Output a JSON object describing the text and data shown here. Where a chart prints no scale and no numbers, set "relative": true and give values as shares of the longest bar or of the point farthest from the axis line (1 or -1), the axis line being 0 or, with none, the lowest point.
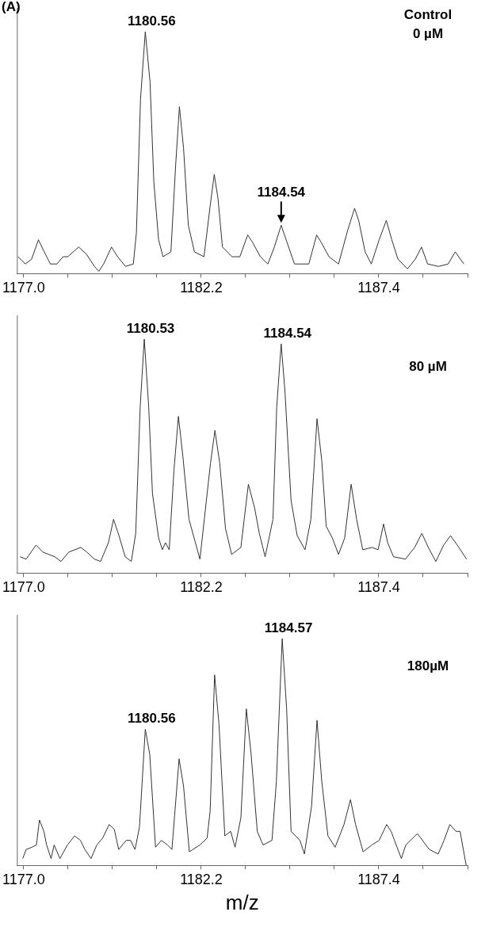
{
  "chart_data": [
    {
      "type": "line",
      "relative": true,
      "title": null,
      "annotations": [
        "(A)",
        "Control\n0 µM",
        {
          "text": "1180.56",
          "x": 1180.56,
          "y": 1
        },
        {
          "text": "1184.54",
          "x": 1184.54,
          "y": 0.2
        }
      ],
      "xlim": [
        1176.8,
        1190.0
      ],
      "xticks": [
        {
          "value": 1177.0,
          "label": "1177.0"
        },
        {
          "value": 1178.3,
          "label": null
        },
        {
          "value": 1179.6,
          "label": null
        },
        {
          "value": 1180.9,
          "label": null
        },
        {
          "value": 1182.2,
          "label": "1182.2"
        },
        {
          "value": 1183.5,
          "label": null
        },
        {
          "value": 1184.8,
          "label": null
        },
        {
          "value": 1186.1,
          "label": null
        },
        {
          "value": 1187.4,
          "label": "1187.4"
        },
        {
          "value": 1188.7,
          "label": null
        },
        {
          "value": 1190.0,
          "label": null
        }
      ],
      "grid": false,
      "legend": false,
      "marker": "none",
      "line_style": "solid",
      "series": [
        {
          "color": "#333333",
          "x": [
            1176.83,
            1177.05,
            1177.23,
            1177.43,
            1177.6,
            1177.78,
            1177.97,
            1178.15,
            1178.29,
            1178.61,
            1178.84,
            1179.07,
            1179.2,
            1179.34,
            1179.57,
            1179.75,
            1179.98,
            1180.21,
            1180.3,
            1180.42,
            1180.56,
            1180.7,
            1180.81,
            1180.95,
            1181.08,
            1181.31,
            1181.45,
            1181.56,
            1181.68,
            1181.82,
            1182.0,
            1182.28,
            1182.46,
            1182.58,
            1182.69,
            1182.82,
            1183.1,
            1183.33,
            1183.56,
            1183.7,
            1183.93,
            1184.15,
            1184.34,
            1184.54,
            1184.71,
            1184.93,
            1185.35,
            1185.58,
            1185.71,
            1185.94,
            1186.22,
            1186.49,
            1186.69,
            1186.81,
            1187.0,
            1187.18,
            1187.41,
            1187.62,
            1187.78,
            1187.96,
            1188.24,
            1188.47,
            1188.65,
            1188.83,
            1189.15,
            1189.43,
            1189.64,
            1189.89
          ],
          "values": [
            0.07,
            0.04,
            0.06,
            0.14,
            0.09,
            0.04,
            0.04,
            0.07,
            0.07,
            0.11,
            0.08,
            0.03,
            0.01,
            0.04,
            0.11,
            0.07,
            0.03,
            0.04,
            0.17,
            0.72,
            1,
            0.79,
            0.38,
            0.14,
            0.07,
            0.09,
            0.45,
            0.69,
            0.52,
            0.2,
            0.09,
            0.07,
            0.28,
            0.41,
            0.31,
            0.11,
            0.07,
            0.07,
            0.16,
            0.13,
            0.07,
            0.04,
            0.11,
            0.2,
            0.13,
            0.04,
            0.04,
            0.16,
            0.13,
            0.07,
            0.04,
            0.18,
            0.27,
            0.22,
            0.09,
            0.04,
            0.14,
            0.22,
            0.14,
            0.06,
            0.02,
            0.06,
            0.11,
            0.04,
            0.03,
            0.04,
            0.09,
            0.04
          ]
        }
      ]
    },
    {
      "type": "line",
      "relative": true,
      "annotations": [
        "80 µM",
        {
          "text": "1180.53",
          "x": 1180.53,
          "y": 1
        },
        {
          "text": "1184.54",
          "x": 1184.54,
          "y": 0.98
        }
      ],
      "xlim": [
        1176.8,
        1190.0
      ],
      "xticks": [
        {
          "value": 1177.0,
          "label": "1177.0"
        },
        {
          "value": 1178.3,
          "label": null
        },
        {
          "value": 1179.6,
          "label": null
        },
        {
          "value": 1180.9,
          "label": null
        },
        {
          "value": 1182.2,
          "label": "1182.2"
        },
        {
          "value": 1183.5,
          "label": null
        },
        {
          "value": 1184.8,
          "label": null
        },
        {
          "value": 1186.1,
          "label": null
        },
        {
          "value": 1187.4,
          "label": "1187.4"
        },
        {
          "value": 1188.7,
          "label": null
        },
        {
          "value": 1190.0,
          "label": null
        }
      ],
      "grid": false,
      "legend": false,
      "marker": "none",
      "line_style": "solid",
      "series": [
        {
          "color": "#333333",
          "x": [
            1176.89,
            1177.07,
            1177.36,
            1177.56,
            1177.91,
            1178.09,
            1178.32,
            1178.67,
            1178.85,
            1179.07,
            1179.25,
            1179.48,
            1179.63,
            1179.79,
            1179.97,
            1180.15,
            1180.28,
            1180.41,
            1180.53,
            1180.66,
            1180.77,
            1180.95,
            1181.06,
            1181.15,
            1181.26,
            1181.4,
            1181.53,
            1181.66,
            1181.84,
            1182.16,
            1182.47,
            1182.6,
            1182.74,
            1182.91,
            1183.09,
            1183.36,
            1183.58,
            1183.76,
            1183.9,
            1184.07,
            1184.3,
            1184.41,
            1184.54,
            1184.65,
            1184.83,
            1185.01,
            1185.24,
            1185.41,
            1185.59,
            1185.73,
            1185.86,
            1186.04,
            1186.22,
            1186.4,
            1186.59,
            1186.75,
            1186.93,
            1187.2,
            1187.38,
            1187.54,
            1187.66,
            1187.83,
            1188.18,
            1188.45,
            1188.66,
            1188.85,
            1189.07,
            1189.3,
            1189.5,
            1189.7,
            1189.97
          ],
          "values": [
            0.07,
            0.06,
            0.12,
            0.09,
            0.07,
            0.05,
            0.09,
            0.11,
            0.09,
            0.06,
            0.05,
            0.13,
            0.23,
            0.16,
            0.07,
            0.05,
            0.17,
            0.71,
            1,
            0.71,
            0.34,
            0.15,
            0.1,
            0.13,
            0.1,
            0.44,
            0.67,
            0.5,
            0.23,
            0.06,
            0.47,
            0.61,
            0.47,
            0.19,
            0.08,
            0.11,
            0.38,
            0.28,
            0.17,
            0.07,
            0.23,
            0.71,
            0.98,
            0.78,
            0.31,
            0.16,
            0.1,
            0.23,
            0.66,
            0.48,
            0.2,
            0.15,
            0.08,
            0.15,
            0.38,
            0.23,
            0.1,
            0.11,
            0.1,
            0.21,
            0.13,
            0.07,
            0.06,
            0.11,
            0.17,
            0.11,
            0.05,
            0.12,
            0.16,
            0.12,
            0.06
          ]
        }
      ]
    },
    {
      "type": "line",
      "relative": true,
      "xlabel": "m/z",
      "annotations": [
        "180µM",
        {
          "text": "1180.56",
          "x": 1180.56,
          "y": 0.6
        },
        {
          "text": "1184.57",
          "x": 1184.57,
          "y": 1
        }
      ],
      "xlim": [
        1176.8,
        1190.0
      ],
      "xticks": [
        {
          "value": 1177.0,
          "label": "1177.0"
        },
        {
          "value": 1178.3,
          "label": null
        },
        {
          "value": 1179.6,
          "label": null
        },
        {
          "value": 1180.9,
          "label": null
        },
        {
          "value": 1182.2,
          "label": "1182.2"
        },
        {
          "value": 1183.5,
          "label": null
        },
        {
          "value": 1184.8,
          "label": null
        },
        {
          "value": 1186.1,
          "label": null
        },
        {
          "value": 1187.4,
          "label": "1187.4"
        },
        {
          "value": 1188.7,
          "label": null
        },
        {
          "value": 1190.0,
          "label": null
        }
      ],
      "grid": false,
      "legend": false,
      "marker": "none",
      "line_style": "solid",
      "series": [
        {
          "color": "#333333",
          "x": [
            1176.97,
            1177.07,
            1177.24,
            1177.37,
            1177.46,
            1177.59,
            1177.67,
            1177.8,
            1177.89,
            1178.06,
            1178.28,
            1178.49,
            1178.66,
            1178.79,
            1178.97,
            1179.14,
            1179.31,
            1179.5,
            1179.65,
            1179.78,
            1180.0,
            1180.13,
            1180.26,
            1180.39,
            1180.56,
            1180.69,
            1180.86,
            1181.03,
            1181.21,
            1181.34,
            1181.55,
            1181.68,
            1181.85,
            1182.16,
            1182.37,
            1182.46,
            1182.59,
            1182.72,
            1182.89,
            1183.06,
            1183.19,
            1183.36,
            1183.52,
            1183.66,
            1183.84,
            1184.01,
            1184.27,
            1184.4,
            1184.57,
            1184.7,
            1184.83,
            1185.09,
            1185.22,
            1185.43,
            1185.59,
            1185.73,
            1185.91,
            1186.12,
            1186.38,
            1186.57,
            1186.72,
            1186.94,
            1187.2,
            1187.41,
            1187.63,
            1187.76,
            1188.06,
            1188.19,
            1188.53,
            1188.88,
            1189.14,
            1189.31,
            1189.48,
            1189.66,
            1189.78,
            1189.96
          ],
          "values": [
            0.03,
            0.07,
            0.08,
            0.09,
            0.2,
            0.15,
            0.09,
            0.03,
            0.09,
            0.03,
            0.09,
            0.13,
            0.11,
            0.07,
            0.03,
            0.09,
            0.12,
            0.18,
            0.16,
            0.07,
            0.11,
            0.11,
            0.07,
            0.17,
            0.6,
            0.49,
            0.08,
            0.11,
            0.09,
            0.07,
            0.47,
            0.35,
            0.06,
            0.09,
            0.12,
            0.24,
            0.84,
            0.62,
            0.13,
            0.15,
            0.08,
            0.21,
            0.69,
            0.49,
            0.15,
            0.09,
            0.11,
            0.37,
            1,
            0.69,
            0.15,
            0.11,
            0.05,
            0.26,
            0.64,
            0.37,
            0.13,
            0.08,
            0.18,
            0.29,
            0.18,
            0.06,
            0.09,
            0.11,
            0.18,
            0.15,
            0.03,
            0.09,
            0.14,
            0.07,
            0.05,
            0.11,
            0.18,
            0.15,
            0.15,
            0
          ]
        }
      ]
    }
  ]
}
